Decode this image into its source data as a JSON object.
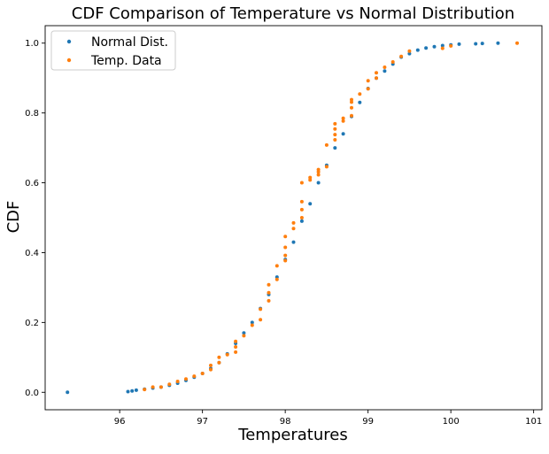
{
  "chart_data": {
    "type": "scatter",
    "title": "CDF Comparison of Temperature vs Normal Distribution",
    "xlabel": "Temperatures",
    "ylabel": "CDF",
    "xlim": [
      95.1,
      101.1
    ],
    "ylim": [
      -0.05,
      1.05
    ],
    "xticks": [
      "96",
      "97",
      "98",
      "99",
      "100",
      "101"
    ],
    "yticks": [
      "0.0",
      "0.2",
      "0.4",
      "0.6",
      "0.8",
      "1.0"
    ],
    "grid": false,
    "legend_position": "top-left",
    "series": [
      {
        "name": "Normal Dist.",
        "color": "#1f77b4",
        "x": [
          95.37,
          96.1,
          96.15,
          96.2,
          96.3,
          96.4,
          96.5,
          96.6,
          96.7,
          96.8,
          96.9,
          97.0,
          97.1,
          97.2,
          97.3,
          97.4,
          97.5,
          97.6,
          97.7,
          97.8,
          97.9,
          98.0,
          98.1,
          98.2,
          98.3,
          98.4,
          98.5,
          98.6,
          98.7,
          98.8,
          98.9,
          99.0,
          99.1,
          99.2,
          99.3,
          99.4,
          99.5,
          99.6,
          99.7,
          99.8,
          99.9,
          100.0,
          100.1,
          100.3,
          100.38,
          100.57
        ],
        "y": [
          0.0,
          0.002,
          0.004,
          0.006,
          0.009,
          0.012,
          0.015,
          0.02,
          0.026,
          0.034,
          0.043,
          0.054,
          0.068,
          0.085,
          0.11,
          0.14,
          0.17,
          0.2,
          0.24,
          0.28,
          0.33,
          0.38,
          0.43,
          0.49,
          0.54,
          0.6,
          0.65,
          0.7,
          0.74,
          0.79,
          0.83,
          0.87,
          0.9,
          0.92,
          0.94,
          0.96,
          0.97,
          0.98,
          0.986,
          0.99,
          0.993,
          0.995,
          0.997,
          0.998,
          0.999,
          1.0
        ]
      },
      {
        "name": "Temp. Data",
        "color": "#ff7f0e",
        "x": [
          96.3,
          96.4,
          96.5,
          96.6,
          96.7,
          96.8,
          96.9,
          97.0,
          97.1,
          97.1,
          97.2,
          97.2,
          97.3,
          97.4,
          97.4,
          97.4,
          97.5,
          97.6,
          97.7,
          97.7,
          97.8,
          97.8,
          97.8,
          97.9,
          97.9,
          98.0,
          98.0,
          98.0,
          98.0,
          98.1,
          98.1,
          98.2,
          98.2,
          98.2,
          98.2,
          98.3,
          98.3,
          98.4,
          98.4,
          98.4,
          98.5,
          98.5,
          98.6,
          98.6,
          98.6,
          98.6,
          98.7,
          98.7,
          98.8,
          98.8,
          98.8,
          98.8,
          98.9,
          99.0,
          99.0,
          99.1,
          99.1,
          99.2,
          99.3,
          99.4,
          99.5,
          99.9,
          100.0,
          100.8
        ],
        "y": [
          0.008,
          0.015,
          0.015,
          0.023,
          0.031,
          0.038,
          0.046,
          0.054,
          0.065,
          0.077,
          0.085,
          0.1,
          0.108,
          0.115,
          0.13,
          0.146,
          0.162,
          0.192,
          0.208,
          0.238,
          0.262,
          0.285,
          0.308,
          0.323,
          0.362,
          0.377,
          0.392,
          0.415,
          0.446,
          0.469,
          0.485,
          0.5,
          0.523,
          0.546,
          0.6,
          0.608,
          0.615,
          0.623,
          0.631,
          0.638,
          0.646,
          0.708,
          0.723,
          0.738,
          0.754,
          0.769,
          0.777,
          0.785,
          0.792,
          0.815,
          0.831,
          0.838,
          0.854,
          0.869,
          0.892,
          0.9,
          0.915,
          0.931,
          0.946,
          0.962,
          0.977,
          0.985,
          0.992,
          1.0
        ]
      }
    ]
  }
}
